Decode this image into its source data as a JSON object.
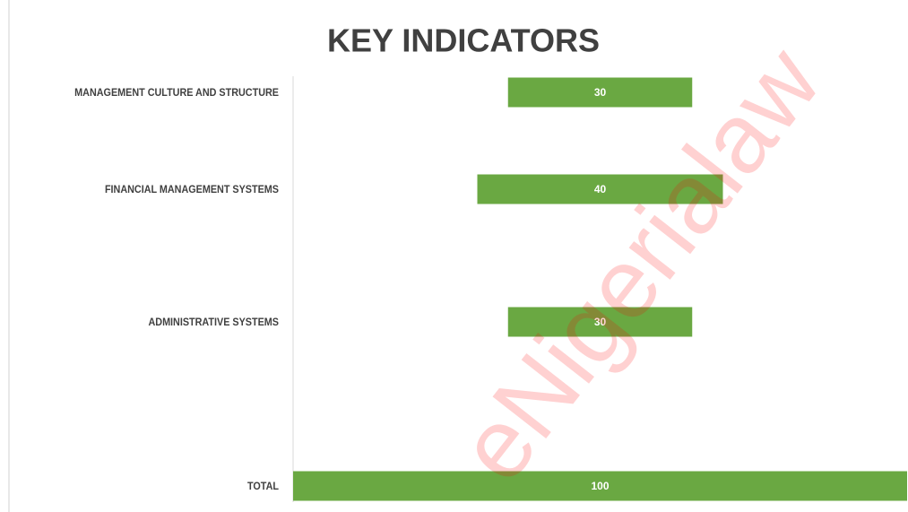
{
  "chart_data": {
    "type": "funnel",
    "title": "KEY INDICATORS",
    "categories": [
      "MANAGEMENT CULTURE AND STRUCTURE",
      "FINANCIAL MANAGEMENT SYSTEMS",
      "ADMINISTRATIVE SYSTEMS",
      "TOTAL"
    ],
    "values": [
      30,
      40,
      30,
      100
    ],
    "color": "#6aa842",
    "xlim": [
      0,
      100
    ],
    "watermark": "eNigerialaw"
  }
}
